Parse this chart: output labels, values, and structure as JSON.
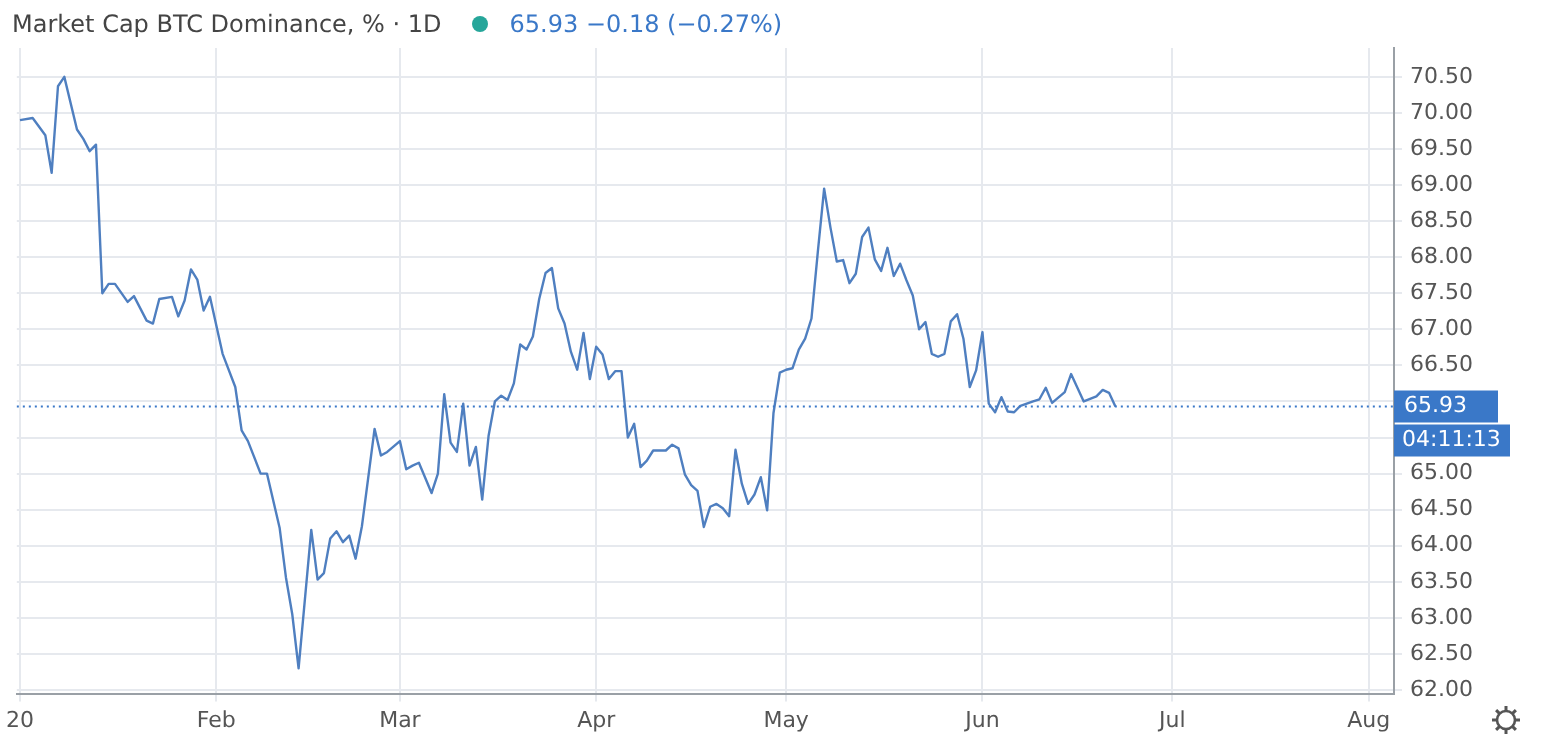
{
  "chart_data": {
    "type": "line",
    "title": "Market Cap BTC Dominance, % · 1D",
    "annotations": [
      "65.93 −0.18 (−0.27%)",
      "04:11:13"
    ],
    "series": [
      {
        "color": "#4f7fc0",
        "x": [
          "2020-01-01",
          "2020-01-03",
          "2020-01-05",
          "2020-01-06",
          "2020-01-07",
          "2020-01-08",
          "2020-01-10",
          "2020-01-11",
          "2020-01-12",
          "2020-01-13",
          "2020-01-14",
          "2020-01-15",
          "2020-01-16",
          "2020-01-18",
          "2020-01-19",
          "2020-01-21",
          "2020-01-22",
          "2020-01-23",
          "2020-01-25",
          "2020-01-26",
          "2020-01-27",
          "2020-01-28",
          "2020-01-29",
          "2020-01-30",
          "2020-01-31",
          "2020-02-02",
          "2020-02-04",
          "2020-02-05",
          "2020-02-06",
          "2020-02-08",
          "2020-02-09",
          "2020-02-11",
          "2020-02-12",
          "2020-02-13",
          "2020-02-14",
          "2020-02-16",
          "2020-02-17",
          "2020-02-18",
          "2020-02-19",
          "2020-02-20",
          "2020-02-21",
          "2020-02-22",
          "2020-02-23",
          "2020-02-24",
          "2020-02-26",
          "2020-02-27",
          "2020-02-28",
          "2020-03-01",
          "2020-03-02",
          "2020-03-03",
          "2020-03-04",
          "2020-03-06",
          "2020-03-07",
          "2020-03-08",
          "2020-03-09",
          "2020-03-10",
          "2020-03-11",
          "2020-03-12",
          "2020-03-13",
          "2020-03-14",
          "2020-03-15",
          "2020-03-16",
          "2020-03-17",
          "2020-03-18",
          "2020-03-19",
          "2020-03-20",
          "2020-03-21",
          "2020-03-22",
          "2020-03-23",
          "2020-03-24",
          "2020-03-25",
          "2020-03-26",
          "2020-03-27",
          "2020-03-28",
          "2020-03-29",
          "2020-03-30",
          "2020-03-31",
          "2020-04-01",
          "2020-04-02",
          "2020-04-03",
          "2020-04-04",
          "2020-04-05",
          "2020-04-06",
          "2020-04-07",
          "2020-04-08",
          "2020-04-09",
          "2020-04-10",
          "2020-04-12",
          "2020-04-13",
          "2020-04-14",
          "2020-04-15",
          "2020-04-16",
          "2020-04-17",
          "2020-04-18",
          "2020-04-19",
          "2020-04-20",
          "2020-04-21",
          "2020-04-22",
          "2020-04-23",
          "2020-04-24",
          "2020-04-25",
          "2020-04-26",
          "2020-04-27",
          "2020-04-28",
          "2020-04-29",
          "2020-04-30",
          "2020-05-01",
          "2020-05-02",
          "2020-05-03",
          "2020-05-04",
          "2020-05-05",
          "2020-05-06",
          "2020-05-07",
          "2020-05-08",
          "2020-05-09",
          "2020-05-10",
          "2020-05-11",
          "2020-05-12",
          "2020-05-13",
          "2020-05-14",
          "2020-05-15",
          "2020-05-16",
          "2020-05-17",
          "2020-05-18",
          "2020-05-19",
          "2020-05-20",
          "2020-05-21",
          "2020-05-22",
          "2020-05-23",
          "2020-05-24",
          "2020-05-25",
          "2020-05-26",
          "2020-05-27",
          "2020-05-28",
          "2020-05-29",
          "2020-05-30",
          "2020-05-31",
          "2020-06-01",
          "2020-06-02",
          "2020-06-03",
          "2020-06-04",
          "2020-06-05",
          "2020-06-06",
          "2020-06-07",
          "2020-06-09",
          "2020-06-10",
          "2020-06-11",
          "2020-06-12",
          "2020-06-14",
          "2020-06-15",
          "2020-06-17",
          "2020-06-19",
          "2020-06-20",
          "2020-06-21",
          "2020-06-22"
        ],
        "values": [
          69.9,
          69.93,
          69.69,
          69.17,
          70.37,
          70.5,
          69.77,
          69.64,
          69.47,
          69.56,
          67.5,
          67.63,
          67.63,
          67.38,
          67.46,
          67.12,
          67.08,
          67.42,
          67.45,
          67.18,
          67.4,
          67.83,
          67.69,
          67.26,
          67.45,
          66.66,
          66.2,
          65.6,
          65.45,
          65.0,
          65.0,
          64.25,
          63.56,
          63.05,
          62.3,
          64.22,
          63.53,
          63.62,
          64.1,
          64.2,
          64.05,
          64.14,
          63.82,
          64.27,
          65.62,
          65.25,
          65.3,
          65.45,
          65.06,
          65.11,
          65.15,
          64.73,
          65.0,
          66.1,
          65.43,
          65.3,
          65.97,
          65.11,
          65.37,
          64.64,
          65.52,
          66.0,
          66.08,
          66.02,
          66.25,
          66.79,
          66.72,
          66.9,
          67.42,
          67.78,
          67.85,
          67.29,
          67.08,
          66.69,
          66.44,
          66.95,
          66.31,
          66.76,
          66.65,
          66.31,
          66.42,
          66.42,
          65.5,
          65.69,
          65.09,
          65.18,
          65.32,
          65.32,
          65.4,
          65.35,
          64.99,
          64.84,
          64.76,
          64.26,
          64.54,
          64.58,
          64.52,
          64.41,
          65.33,
          64.86,
          64.58,
          64.71,
          64.95,
          64.49,
          65.84,
          66.4,
          66.44,
          66.46,
          66.72,
          66.87,
          67.15,
          68.07,
          68.95,
          68.41,
          67.94,
          67.96,
          67.64,
          67.77,
          68.28,
          68.41,
          67.97,
          67.81,
          68.13,
          67.74,
          67.91,
          67.68,
          67.47,
          67.0,
          67.1,
          66.66,
          66.62,
          66.66,
          67.11,
          67.21,
          66.87,
          66.2,
          66.43,
          66.96,
          65.97,
          65.85,
          66.06,
          65.86,
          65.85,
          65.94,
          66.0,
          66.03,
          66.19,
          65.98,
          66.13,
          66.38,
          66.0,
          66.07,
          66.16,
          66.12,
          65.93
        ]
      }
    ],
    "xlim": [
      "2019-12-31T12:00",
      "2020-08-05"
    ],
    "xticks": [
      {
        "value": "2020-01-01",
        "label": "20"
      },
      {
        "value": "2020-02-01",
        "label": "Feb"
      },
      {
        "value": "2020-03-01",
        "label": "Mar"
      },
      {
        "value": "2020-04-01",
        "label": "Apr"
      },
      {
        "value": "2020-05-01",
        "label": "May"
      },
      {
        "value": "2020-06-01",
        "label": "Jun"
      },
      {
        "value": "2020-07-01",
        "label": "Jul"
      },
      {
        "value": "2020-08-01",
        "label": "Aug"
      }
    ],
    "ylim": [
      61.95,
      70.9
    ],
    "yticks": [
      {
        "value": 62,
        "label": "62.00"
      },
      {
        "value": 62.5,
        "label": "62.50"
      },
      {
        "value": 63,
        "label": "63.00"
      },
      {
        "value": 63.5,
        "label": "63.50"
      },
      {
        "value": 64,
        "label": "64.00"
      },
      {
        "value": 64.5,
        "label": "64.50"
      },
      {
        "value": 65,
        "label": "65.00"
      },
      {
        "value": 65.5,
        "label": null
      },
      {
        "value": 66,
        "label": null
      },
      {
        "value": 66.5,
        "label": "66.50"
      },
      {
        "value": 67,
        "label": "67.00"
      },
      {
        "value": 67.5,
        "label": "67.50"
      },
      {
        "value": 68,
        "label": "68.00"
      },
      {
        "value": 68.5,
        "label": "68.50"
      },
      {
        "value": 69,
        "label": "69.00"
      },
      {
        "value": 69.5,
        "label": "69.50"
      },
      {
        "value": 70,
        "label": "70.00"
      },
      {
        "value": 70.5,
        "label": "70.50"
      }
    ],
    "ref_lines": [
      {
        "axis": "y",
        "value": 65.93,
        "label": "65.93",
        "color": "#3a78c8",
        "line_style": "dotted"
      }
    ],
    "grid": true,
    "legend": false,
    "marker": "none",
    "line_style": "solid"
  }
}
